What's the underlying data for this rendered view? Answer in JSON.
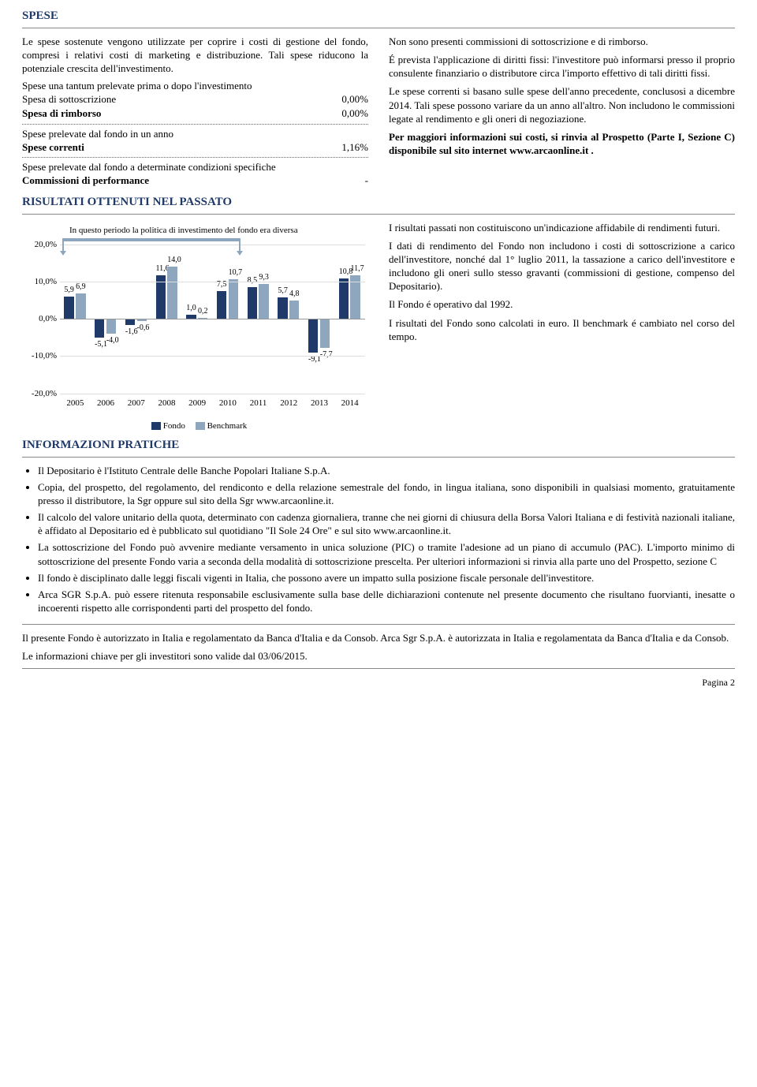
{
  "spese": {
    "title": "SPESE",
    "intro": "Le spese sostenute vengono utilizzate per coprire i costi di gestione del fondo, compresi i relativi costi di marketing e distribuzione. Tali spese riducono la potenziale crescita dell'investimento.",
    "sub1": "Spese una tantum prelevate prima o dopo l'investimento",
    "rows1": [
      {
        "label": "Spesa di sottoscrizione",
        "value": "0,00%"
      },
      {
        "label": "Spesa di rimborso",
        "value": "0,00%"
      }
    ],
    "sub2": "Spese prelevate dal fondo in un anno",
    "rows2": [
      {
        "label": "Spese correnti",
        "value": "1,16%"
      }
    ],
    "sub3": "Spese prelevate dal fondo a determinate condizioni specifiche",
    "rows3": [
      {
        "label": "Commissioni di performance",
        "value": "-"
      }
    ],
    "right_p1": "Non sono presenti commissioni di sottoscrizione e di rimborso.",
    "right_p2": "É prevista l'applicazione di diritti fissi: l'investitore può informarsi presso il proprio consulente finanziario o distributore circa l'importo effettivo di tali diritti fissi.",
    "right_p3": "Le spese correnti si basano sulle spese dell'anno precedente, conclusosi a dicembre 2014. Tali spese possono variare da un anno all'altro. Non includono le commissioni legate al rendimento e gli oneri di negoziazione.",
    "right_p4_prefix": "Per maggiori informazioni sui costi, si rinvia al Prospetto (Parte I, Sezione C) disponibile sul sito internet ",
    "right_p4_link": "www.arcaonline.it",
    "right_p4_suffix": " ."
  },
  "risultati": {
    "title": "RISULTATI OTTENUTI NEL PASSATO",
    "note": "In questo periodo la politica di investimento del fondo era diversa",
    "right_p1": "I risultati passati non costituiscono un'indicazione affidabile di rendimenti futuri.",
    "right_p2": "I dati di rendimento del Fondo non includono i costi di sottoscrizione a carico dell'investitore, nonché dal 1° luglio 2011, la tassazione a carico dell'investitore e includono gli oneri sullo stesso gravanti (commissioni di gestione, compenso del Depositario).",
    "right_p3": "Il Fondo é operativo dal 1992.",
    "right_p4": "I risultati del Fondo sono calcolati in euro. Il benchmark é cambiato nel corso del tempo."
  },
  "chart": {
    "ymin": -20,
    "ymax": 20,
    "ystep": 10,
    "ylabels": [
      "20,0%",
      "10,0%",
      "0,0%",
      "-10,0%",
      "-20,0%"
    ],
    "years": [
      "2005",
      "2006",
      "2007",
      "2008",
      "2009",
      "2010",
      "2011",
      "2012",
      "2013",
      "2014"
    ],
    "fondo_color": "#1f3a68",
    "bench_color": "#8fa6bf",
    "series": [
      {
        "a": 5.9,
        "b": 6.9,
        "la": "5,9",
        "lb": "6,9"
      },
      {
        "a": -5.1,
        "b": -4.0,
        "la": "-5,1",
        "lb": "-4,0"
      },
      {
        "a": -1.6,
        "b": -0.6,
        "la": "-1,6",
        "lb": "-0,6"
      },
      {
        "a": 11.6,
        "b": 14.0,
        "la": "11,6",
        "lb": "14,0"
      },
      {
        "a": 1.0,
        "b": 0.2,
        "la": "1,0",
        "lb": "0,2"
      },
      {
        "a": 7.5,
        "b": 10.7,
        "la": "7,5",
        "lb": "10,7"
      },
      {
        "a": 8.5,
        "b": 9.3,
        "la": "8,5",
        "lb": "9,3"
      },
      {
        "a": 5.7,
        "b": 4.8,
        "la": "5,7",
        "lb": "4,8"
      },
      {
        "a": -9.1,
        "b": -7.7,
        "la": "-9,1",
        "lb": "-7,7"
      },
      {
        "a": 10.8,
        "b": 11.7,
        "la": "10,8",
        "lb": "11,7"
      }
    ],
    "legend": {
      "a": "Fondo",
      "b": "Benchmark"
    },
    "arrow_end_group": 5
  },
  "info": {
    "title": "INFORMAZIONI PRATICHE",
    "bullets": [
      "Il Depositario è l'Istituto Centrale delle Banche Popolari Italiane S.p.A.",
      "Copia, del prospetto, del regolamento, del rendiconto e della relazione semestrale del fondo, in lingua italiana, sono disponibili in qualsiasi momento, gratuitamente presso il distributore, la Sgr oppure sul sito della Sgr www.arcaonline.it.",
      "Il calcolo del valore unitario della quota, determinato con cadenza giornaliera, tranne che nei giorni di chiusura della Borsa Valori Italiana e di festività nazionali italiane, è affidato al Depositario ed è pubblicato sul quotidiano \"Il Sole 24 Ore\" e sul sito www.arcaonline.it.",
      "La sottoscrizione del Fondo può avvenire mediante versamento in unica soluzione (PIC) o tramite l'adesione ad un piano di accumulo (PAC). L'importo minimo di sottoscrizione del presente Fondo varia a seconda della modalità di sottoscrizione prescelta. Per ulteriori informazioni si rinvia alla parte uno del Prospetto, sezione C",
      "Il fondo è disciplinato dalle leggi fiscali vigenti in Italia, che possono avere un impatto sulla posizione fiscale personale dell'investitore.",
      "Arca SGR S.p.A. può essere ritenuta responsabile esclusivamente sulla base delle dichiarazioni contenute nel presente documento che risultano fuorvianti, inesatte o incoerenti rispetto alle corrispondenti parti del prospetto del fondo."
    ]
  },
  "auth": {
    "p1": "Il presente Fondo è autorizzato in Italia e regolamentato da Banca d'Italia e da Consob. Arca Sgr S.p.A. è autorizzata in Italia e regolamentata da Banca d'Italia e da Consob.",
    "p2": "Le informazioni chiave per gli investitori sono valide dal 03/06/2015."
  },
  "footer": "Pagina 2"
}
